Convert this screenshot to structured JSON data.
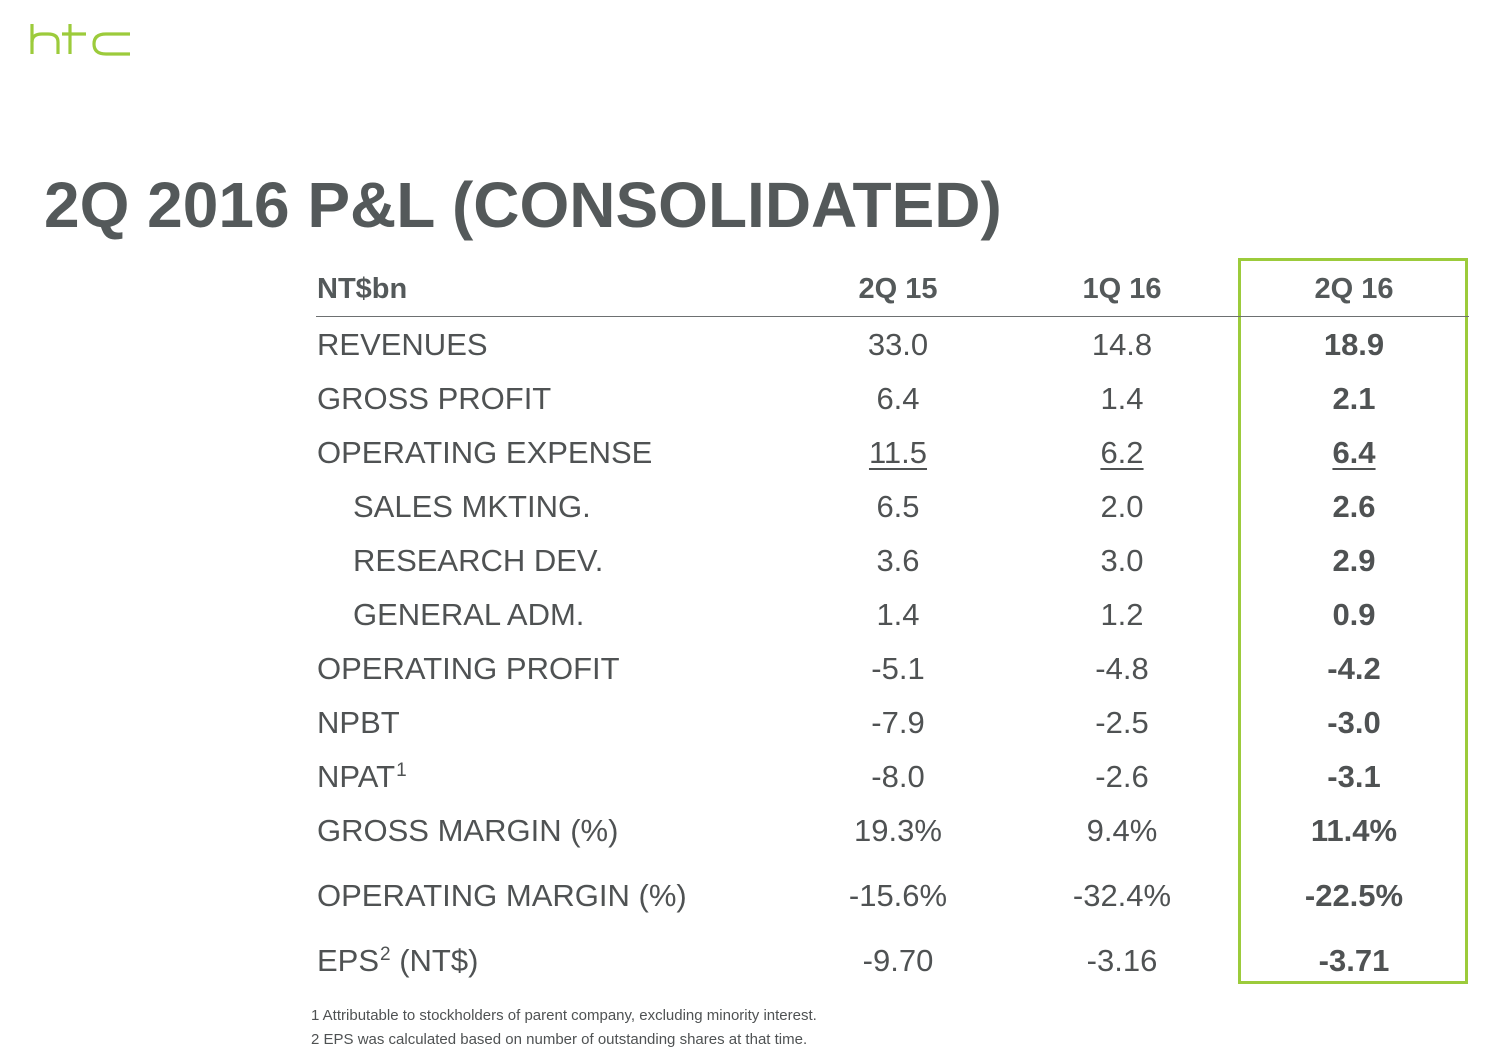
{
  "brand": {
    "logo_text": "htc",
    "logo_color": "#9ccb3b"
  },
  "title": "2Q 2016 P&L (CONSOLIDATED)",
  "table": {
    "header": {
      "unit": "NT$bn",
      "col1": "2Q 15",
      "col2": "1Q 16",
      "col3": "2Q 16"
    },
    "rows": [
      {
        "label": "REVENUES",
        "col1": "33.0",
        "col2": "14.8",
        "col3": "18.9"
      },
      {
        "label": "GROSS PROFIT",
        "col1": "6.4",
        "col2": "1.4",
        "col3": "2.1"
      },
      {
        "label": "OPERATING EXPENSE",
        "col1": "11.5",
        "col2": "6.2",
        "col3": "6.4"
      },
      {
        "label": "SALES MKTING.",
        "col1": "6.5",
        "col2": "2.0",
        "col3": "2.6"
      },
      {
        "label": "RESEARCH DEV.",
        "col1": "3.6",
        "col2": "3.0",
        "col3": "2.9"
      },
      {
        "label": "GENERAL ADM.",
        "col1": "1.4",
        "col2": "1.2",
        "col3": "0.9"
      },
      {
        "label": "OPERATING PROFIT",
        "col1": "-5.1",
        "col2": "-4.8",
        "col3": "-4.2"
      },
      {
        "label": "NPBT",
        "col1": "-7.9",
        "col2": "-2.5",
        "col3": "-3.0"
      },
      {
        "label": "NPAT",
        "label_sup": "1",
        "col1": "-8.0",
        "col2": "-2.6",
        "col3": "-3.1"
      },
      {
        "label": "GROSS MARGIN (%)",
        "col1": "19.3%",
        "col2": "9.4%",
        "col3": "11.4%"
      },
      {
        "label": "OPERATING MARGIN (%)",
        "col1": "-15.6%",
        "col2": "-32.4%",
        "col3": "-22.5%"
      },
      {
        "label": "EPS",
        "label_sup": "2",
        "label_suffix": " (NT$)",
        "col1": "-9.70",
        "col2": "-3.16",
        "col3": "-3.71"
      }
    ]
  },
  "footnotes": [
    "1 Attributable to stockholders of parent company, excluding minority interest.",
    "2 EPS was calculated based on number of outstanding shares at that time."
  ],
  "colors": {
    "accent_green": "#9ccb3b",
    "title_gray": "#54595a",
    "text_gray": "#4f5253"
  }
}
